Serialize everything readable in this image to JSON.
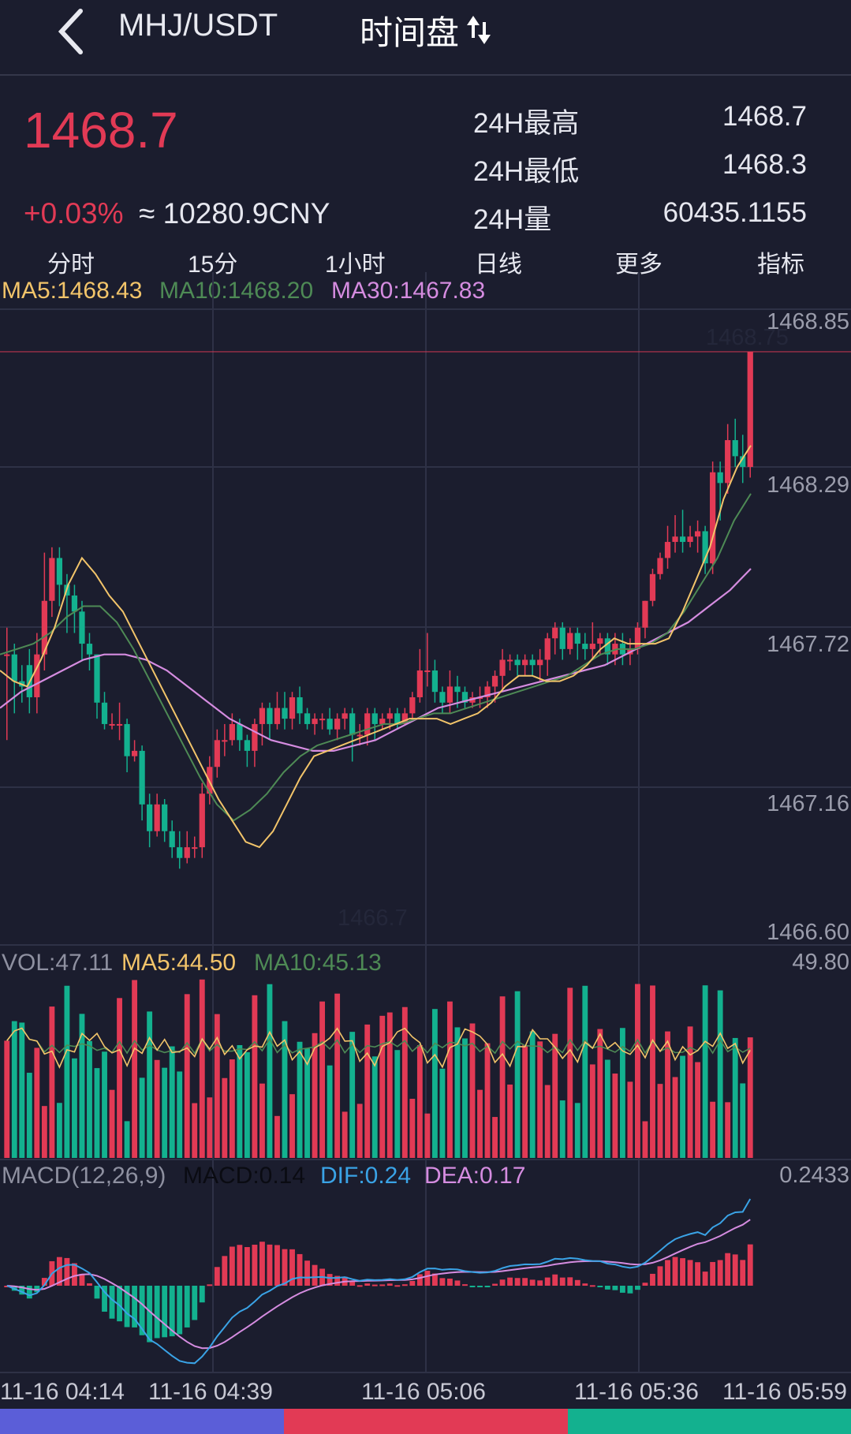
{
  "header": {
    "pair": "MHJ/USDT",
    "mode": "时间盘"
  },
  "ticker": {
    "price": "1468.7",
    "change": "+0.03%",
    "cny": "≈ 10280.9CNY"
  },
  "stats": [
    {
      "label": "24H最高",
      "value": "1468.7"
    },
    {
      "label": "24H最低",
      "value": "1468.3"
    },
    {
      "label": "24H量",
      "value": "60435.1155"
    }
  ],
  "tabs": [
    "分时",
    "15分",
    "1小时",
    "日线",
    "更多",
    "指标"
  ],
  "ma_legend": {
    "ma5": "MA5:1468.43",
    "ma10": "MA10:1468.20",
    "ma30": "MA30:1467.83"
  },
  "price_axis": [
    "1468.85",
    "1468.29",
    "1467.72",
    "1467.16",
    "1466.60"
  ],
  "price_marks": {
    "high": "1468.75",
    "low": "1466.7"
  },
  "vol_legend": {
    "vol": "VOL:47.11",
    "ma5": "MA5:44.50",
    "ma10": "MA10:45.13",
    "max": "49.80"
  },
  "macd_legend": {
    "title": "MACD(12,26,9)",
    "macd": "MACD:0.14",
    "dif": "DIF:0.24",
    "dea": "DEA:0.17",
    "max": "0.2433"
  },
  "time_axis": [
    "11-16 04:14",
    "11-16 04:39",
    "11-16 05:06",
    "11-16 05:36",
    "11-16 05:59"
  ],
  "colors": {
    "up": "#e23a55",
    "down": "#13b18f",
    "ma5": "#f2c46a",
    "ma10": "#4e8a55",
    "ma30": "#d58ce0",
    "dif": "#3aa3e6",
    "bg": "#1b1d2e",
    "bar_left": "#5b5ed8"
  },
  "chart_data": {
    "type": "candlestick",
    "ylim": [
      1466.6,
      1468.85
    ],
    "candles": [
      [
        1467.62,
        1467.62,
        1467.72,
        1467.3
      ],
      [
        1467.62,
        1467.52,
        1467.66,
        1467.4
      ],
      [
        1467.52,
        1467.5,
        1467.58,
        1467.44
      ],
      [
        1467.58,
        1467.46,
        1467.64,
        1467.4
      ],
      [
        1467.46,
        1467.62,
        1467.7,
        1467.4
      ],
      [
        1467.62,
        1467.82,
        1468.0,
        1467.56
      ],
      [
        1467.82,
        1467.98,
        1468.02,
        1467.76
      ],
      [
        1467.98,
        1467.88,
        1468.02,
        1467.8
      ],
      [
        1467.88,
        1467.84,
        1467.92,
        1467.7
      ],
      [
        1467.84,
        1467.78,
        1467.88,
        1467.7
      ],
      [
        1467.78,
        1467.66,
        1467.82,
        1467.6
      ],
      [
        1467.66,
        1467.62,
        1467.7,
        1467.56
      ],
      [
        1467.62,
        1467.44,
        1467.62,
        1467.38
      ],
      [
        1467.44,
        1467.36,
        1467.48,
        1467.34
      ],
      [
        1467.36,
        1467.36,
        1467.4,
        1467.34
      ],
      [
        1467.36,
        1467.36,
        1467.44,
        1467.3
      ],
      [
        1467.36,
        1467.24,
        1467.38,
        1467.18
      ],
      [
        1467.24,
        1467.26,
        1467.3,
        1467.22
      ],
      [
        1467.26,
        1467.06,
        1467.28,
        1467.0
      ],
      [
        1467.06,
        1466.96,
        1467.1,
        1466.9
      ],
      [
        1466.96,
        1467.06,
        1467.1,
        1466.94
      ],
      [
        1467.06,
        1466.96,
        1467.08,
        1466.92
      ],
      [
        1466.96,
        1466.9,
        1467.0,
        1466.86
      ],
      [
        1466.9,
        1466.86,
        1466.96,
        1466.82
      ],
      [
        1466.86,
        1466.9,
        1466.96,
        1466.84
      ],
      [
        1466.9,
        1466.9,
        1466.94,
        1466.86
      ],
      [
        1466.9,
        1467.1,
        1467.14,
        1466.86
      ],
      [
        1467.1,
        1467.2,
        1467.24,
        1467.06
      ],
      [
        1467.2,
        1467.3,
        1467.34,
        1467.16
      ],
      [
        1467.3,
        1467.3,
        1467.36,
        1467.24
      ],
      [
        1467.3,
        1467.36,
        1467.4,
        1467.28
      ],
      [
        1467.36,
        1467.3,
        1467.38,
        1467.26
      ],
      [
        1467.3,
        1467.26,
        1467.32,
        1467.2
      ],
      [
        1467.26,
        1467.36,
        1467.38,
        1467.2
      ],
      [
        1467.36,
        1467.42,
        1467.44,
        1467.28
      ],
      [
        1467.42,
        1467.36,
        1467.44,
        1467.3
      ],
      [
        1467.36,
        1467.42,
        1467.48,
        1467.34
      ],
      [
        1467.42,
        1467.38,
        1467.48,
        1467.34
      ],
      [
        1467.38,
        1467.46,
        1467.48,
        1467.34
      ],
      [
        1467.46,
        1467.4,
        1467.5,
        1467.36
      ],
      [
        1467.4,
        1467.36,
        1467.42,
        1467.34
      ],
      [
        1467.36,
        1467.38,
        1467.4,
        1467.32
      ],
      [
        1467.38,
        1467.38,
        1467.4,
        1467.34
      ],
      [
        1467.38,
        1467.34,
        1467.42,
        1467.32
      ],
      [
        1467.34,
        1467.38,
        1467.4,
        1467.3
      ],
      [
        1467.38,
        1467.4,
        1467.42,
        1467.34
      ],
      [
        1467.4,
        1467.32,
        1467.42,
        1467.22
      ],
      [
        1467.32,
        1467.32,
        1467.36,
        1467.28
      ],
      [
        1467.32,
        1467.4,
        1467.42,
        1467.28
      ],
      [
        1467.4,
        1467.36,
        1467.42,
        1467.3
      ],
      [
        1467.36,
        1467.38,
        1467.4,
        1467.34
      ],
      [
        1467.38,
        1467.4,
        1467.42,
        1467.34
      ],
      [
        1467.4,
        1467.36,
        1467.42,
        1467.34
      ],
      [
        1467.36,
        1467.4,
        1467.42,
        1467.36
      ],
      [
        1467.4,
        1467.46,
        1467.48,
        1467.38
      ],
      [
        1467.46,
        1467.56,
        1467.64,
        1467.44
      ],
      [
        1467.56,
        1467.56,
        1467.7,
        1467.5
      ],
      [
        1467.56,
        1467.48,
        1467.6,
        1467.44
      ],
      [
        1467.48,
        1467.44,
        1467.5,
        1467.4
      ],
      [
        1467.44,
        1467.5,
        1467.56,
        1467.4
      ],
      [
        1467.5,
        1467.48,
        1467.54,
        1467.42
      ],
      [
        1467.48,
        1467.44,
        1467.5,
        1467.42
      ],
      [
        1467.44,
        1467.46,
        1467.48,
        1467.42
      ],
      [
        1467.46,
        1467.46,
        1467.5,
        1467.42
      ],
      [
        1467.46,
        1467.5,
        1467.52,
        1467.42
      ],
      [
        1467.5,
        1467.54,
        1467.56,
        1467.44
      ],
      [
        1467.54,
        1467.6,
        1467.64,
        1467.48
      ],
      [
        1467.6,
        1467.6,
        1467.62,
        1467.56
      ],
      [
        1467.6,
        1467.58,
        1467.62,
        1467.54
      ],
      [
        1467.58,
        1467.6,
        1467.62,
        1467.54
      ],
      [
        1467.6,
        1467.58,
        1467.62,
        1467.54
      ],
      [
        1467.58,
        1467.6,
        1467.64,
        1467.52
      ],
      [
        1467.6,
        1467.68,
        1467.7,
        1467.54
      ],
      [
        1467.68,
        1467.72,
        1467.74,
        1467.62
      ],
      [
        1467.72,
        1467.64,
        1467.74,
        1467.6
      ],
      [
        1467.64,
        1467.7,
        1467.72,
        1467.62
      ],
      [
        1467.7,
        1467.66,
        1467.72,
        1467.6
      ],
      [
        1467.66,
        1467.64,
        1467.7,
        1467.6
      ],
      [
        1467.64,
        1467.66,
        1467.74,
        1467.6
      ],
      [
        1467.66,
        1467.68,
        1467.7,
        1467.62
      ],
      [
        1467.68,
        1467.62,
        1467.7,
        1467.58
      ],
      [
        1467.62,
        1467.66,
        1467.7,
        1467.58
      ],
      [
        1467.66,
        1467.62,
        1467.7,
        1467.58
      ],
      [
        1467.62,
        1467.64,
        1467.68,
        1467.58
      ],
      [
        1467.64,
        1467.72,
        1467.74,
        1467.62
      ],
      [
        1467.72,
        1467.82,
        1467.82,
        1467.68
      ],
      [
        1467.82,
        1467.92,
        1467.94,
        1467.8
      ],
      [
        1467.92,
        1467.98,
        1468.0,
        1467.9
      ],
      [
        1467.98,
        1468.04,
        1468.1,
        1467.94
      ],
      [
        1468.04,
        1468.06,
        1468.14,
        1468.0
      ],
      [
        1468.06,
        1468.04,
        1468.16,
        1468.0
      ],
      [
        1468.04,
        1468.06,
        1468.1,
        1468.02
      ],
      [
        1468.06,
        1468.08,
        1468.12,
        1468.0
      ],
      [
        1468.08,
        1467.96,
        1468.1,
        1467.92
      ],
      [
        1467.96,
        1468.3,
        1468.34,
        1467.92
      ],
      [
        1468.3,
        1468.26,
        1468.34,
        1468.12
      ],
      [
        1468.26,
        1468.42,
        1468.48,
        1468.22
      ],
      [
        1468.42,
        1468.36,
        1468.5,
        1468.32
      ],
      [
        1468.36,
        1468.32,
        1468.44,
        1468.26
      ],
      [
        1468.32,
        1468.75,
        1468.75,
        1468.28
      ]
    ],
    "ma5": [
      1467.56,
      1467.52,
      1467.5,
      1467.6,
      1467.72,
      1467.88,
      1467.98,
      1467.92,
      1467.84,
      1467.78,
      1467.68,
      1467.58,
      1467.48,
      1467.38,
      1467.28,
      1467.18,
      1467.08,
      1467.0,
      1466.92,
      1466.9,
      1466.96,
      1467.06,
      1467.16,
      1467.24,
      1467.26,
      1467.28,
      1467.3,
      1467.32,
      1467.34,
      1467.36,
      1467.38,
      1467.38,
      1467.38,
      1467.36,
      1467.38,
      1467.4,
      1467.44,
      1467.5,
      1467.54,
      1467.54,
      1467.52,
      1467.52,
      1467.54,
      1467.58,
      1467.64,
      1467.68,
      1467.66,
      1467.66,
      1467.66,
      1467.68,
      1467.78,
      1467.9,
      1468.02,
      1468.2,
      1468.32,
      1468.4
    ],
    "ma10": [
      1467.62,
      1467.64,
      1467.66,
      1467.7,
      1467.76,
      1467.8,
      1467.8,
      1467.74,
      1467.64,
      1467.52,
      1467.4,
      1467.28,
      1467.16,
      1467.06,
      1467.0,
      1467.04,
      1467.1,
      1467.18,
      1467.24,
      1467.28,
      1467.3,
      1467.32,
      1467.34,
      1467.36,
      1467.36,
      1467.38,
      1467.4,
      1467.4,
      1467.42,
      1467.44,
      1467.46,
      1467.48,
      1467.5,
      1467.52,
      1467.54,
      1467.58,
      1467.62,
      1467.64,
      1467.64,
      1467.66,
      1467.7,
      1467.78,
      1467.88,
      1467.98,
      1468.12,
      1468.22
    ],
    "ma30": [
      1467.42,
      1467.48,
      1467.52,
      1467.56,
      1467.6,
      1467.62,
      1467.62,
      1467.6,
      1467.56,
      1467.5,
      1467.44,
      1467.38,
      1467.34,
      1467.3,
      1467.28,
      1467.26,
      1467.26,
      1467.28,
      1467.3,
      1467.34,
      1467.38,
      1467.42,
      1467.44,
      1467.46,
      1467.48,
      1467.5,
      1467.52,
      1467.54,
      1467.56,
      1467.58,
      1467.62,
      1467.66,
      1467.7,
      1467.74,
      1467.8,
      1467.86,
      1467.94
    ]
  }
}
